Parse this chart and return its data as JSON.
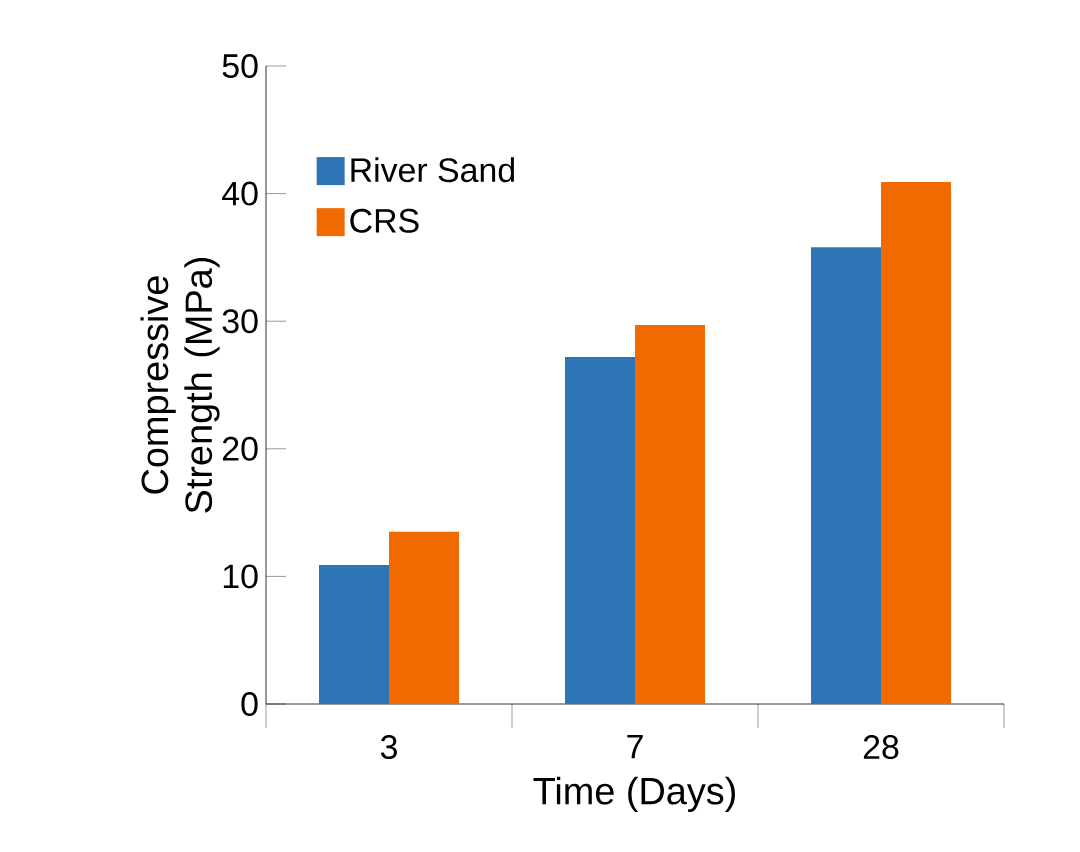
{
  "chart_data": {
    "type": "bar",
    "xlabel": "Time (Days)",
    "ylabel": "Compressive Strength (MPa)",
    "categories": [
      "3",
      "7",
      "28"
    ],
    "series": [
      {
        "name": "River Sand",
        "color": "#2e75b6",
        "values": [
          10.9,
          27.2,
          35.8
        ]
      },
      {
        "name": "CRS",
        "color": "#f06a00",
        "values": [
          13.5,
          29.7,
          40.9
        ]
      }
    ],
    "ylim": [
      0,
      50
    ],
    "yticks": [
      0,
      10,
      20,
      30,
      40,
      50
    ],
    "legend": "top left"
  }
}
